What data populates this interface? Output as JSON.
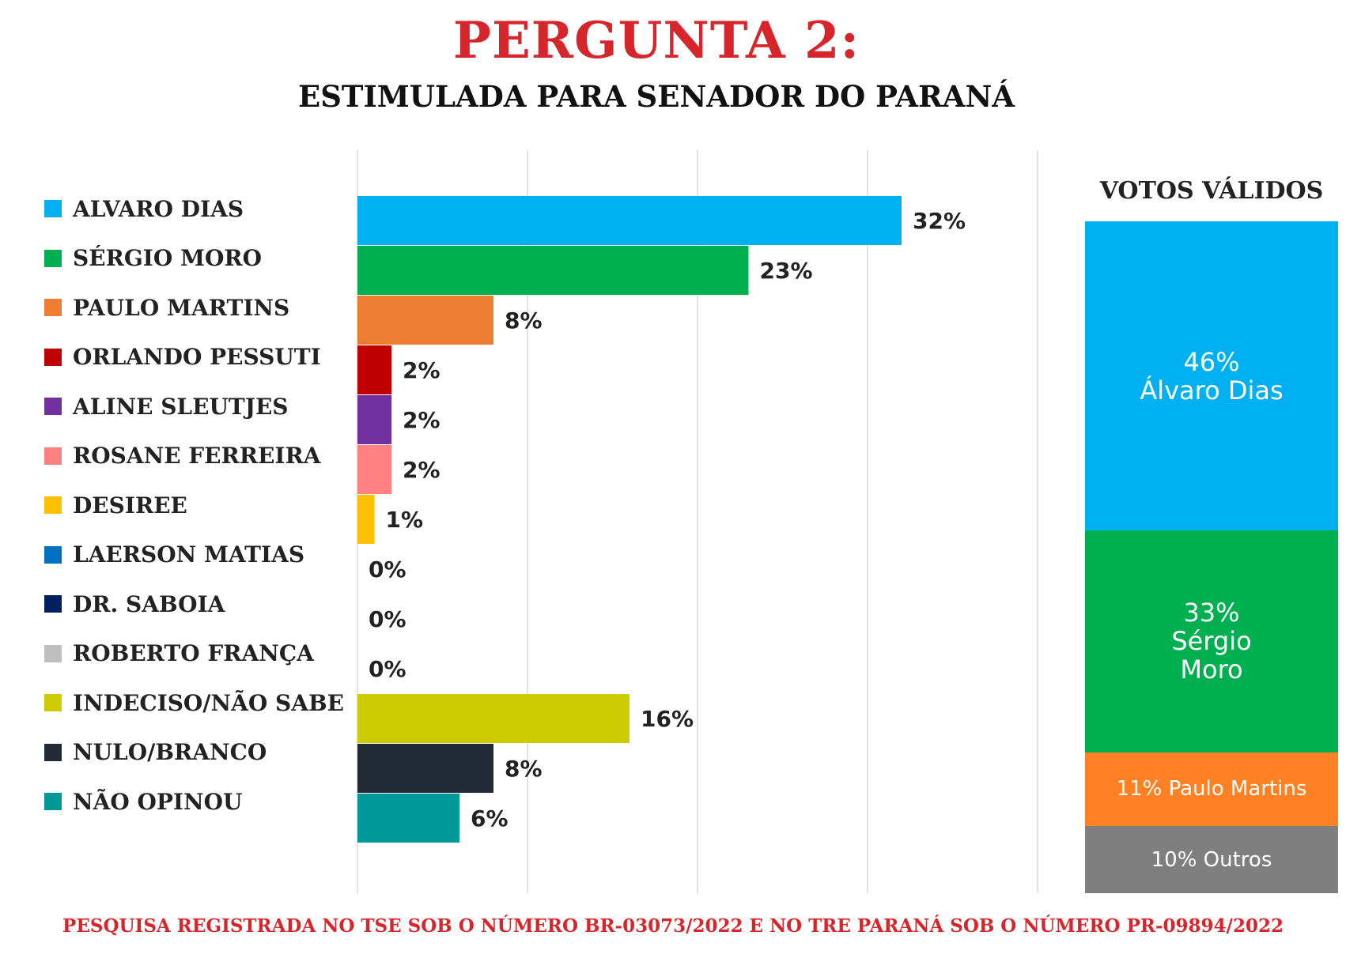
{
  "title": "PERGUNTA 2:",
  "subtitle": "ESTIMULADA PARA SENADOR DO PARANÁ",
  "chart_data": [
    {
      "type": "bar",
      "orientation": "horizontal",
      "title": "ESTIMULADA PARA SENADOR DO PARANÁ",
      "categories": [
        "ALVARO DIAS",
        "SÉRGIO MORO",
        "PAULO MARTINS",
        "ORLANDO PESSUTI",
        "ALINE SLEUTJES",
        "ROSANE FERREIRA",
        "DESIREE",
        "LAERSON MATIAS",
        "DR. SABOIA",
        "ROBERTO FRANÇA",
        "INDECISO/NÃO SABE",
        "NULO/BRANCO",
        "NÃO OPINOU"
      ],
      "values": [
        32,
        23,
        8,
        2,
        2,
        2,
        1,
        0,
        0,
        0,
        16,
        8,
        6
      ],
      "labels": [
        "32%",
        "23%",
        "8%",
        "2%",
        "2%",
        "2%",
        "1%",
        "0%",
        "0%",
        "0%",
        "16%",
        "8%",
        "6%"
      ],
      "colors": [
        "#00b0f0",
        "#00b050",
        "#ed7d31",
        "#c00000",
        "#7030a0",
        "#ff8080",
        "#ffc000",
        "#0070c0",
        "#002060",
        "#bfbfbf",
        "#cccc00",
        "#222a35",
        "#009999"
      ],
      "xlim": [
        0,
        40
      ],
      "grid": true,
      "legend": "left"
    },
    {
      "type": "stacked-bar",
      "title": "VOTOS VÁLIDOS",
      "categories": [
        "Álvaro Dias",
        "Sérgio Moro",
        "Paulo Martins",
        "Outros"
      ],
      "values": [
        46,
        33,
        11,
        10
      ],
      "labels": [
        "46%\nÁlvaro Dias",
        "33%\nSérgio\nMoro",
        "11% Paulo Martins",
        "10% Outros"
      ],
      "colors": [
        "#00b0f0",
        "#00b050",
        "#ff8124",
        "#7f7f7f"
      ]
    }
  ],
  "footer": "PESQUISA REGISTRADA NO TSE SOB O NÚMERO BR-03073/2022 E NO TRE PARANÁ SOB O NÚMERO PR-09894/2022"
}
